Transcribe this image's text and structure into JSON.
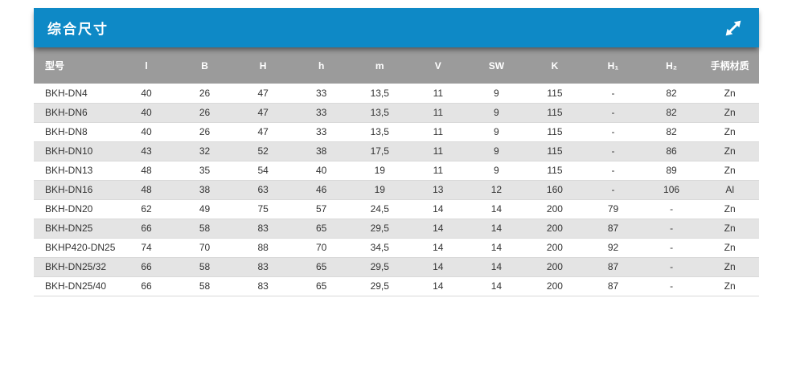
{
  "panel": {
    "title": "综合尺寸",
    "colors": {
      "title_bar": "#0e89c6",
      "header_bg": "#9b9b9b",
      "stripe": "#e4e4e4",
      "text": "#333333"
    },
    "expand_icon": "diagonal-expand-arrow-icon"
  },
  "table": {
    "columns": [
      {
        "key": "model",
        "label": "型号"
      },
      {
        "key": "l",
        "label": "l"
      },
      {
        "key": "B",
        "label": "B"
      },
      {
        "key": "H",
        "label": "H"
      },
      {
        "key": "h",
        "label": "h"
      },
      {
        "key": "m",
        "label": "m"
      },
      {
        "key": "V",
        "label": "V"
      },
      {
        "key": "SW",
        "label": "SW"
      },
      {
        "key": "K",
        "label": "K"
      },
      {
        "key": "H1",
        "label": "H₁"
      },
      {
        "key": "H2",
        "label": "H₂"
      },
      {
        "key": "material",
        "label": "手柄材质"
      }
    ],
    "rows": [
      [
        "BKH-DN4",
        "40",
        "26",
        "47",
        "33",
        "13,5",
        "11",
        "9",
        "115",
        "-",
        "82",
        "Zn"
      ],
      [
        "BKH-DN6",
        "40",
        "26",
        "47",
        "33",
        "13,5",
        "11",
        "9",
        "115",
        "-",
        "82",
        "Zn"
      ],
      [
        "BKH-DN8",
        "40",
        "26",
        "47",
        "33",
        "13,5",
        "11",
        "9",
        "115",
        "-",
        "82",
        "Zn"
      ],
      [
        "BKH-DN10",
        "43",
        "32",
        "52",
        "38",
        "17,5",
        "11",
        "9",
        "115",
        "-",
        "86",
        "Zn"
      ],
      [
        "BKH-DN13",
        "48",
        "35",
        "54",
        "40",
        "19",
        "11",
        "9",
        "115",
        "-",
        "89",
        "Zn"
      ],
      [
        "BKH-DN16",
        "48",
        "38",
        "63",
        "46",
        "19",
        "13",
        "12",
        "160",
        "-",
        "106",
        "Al"
      ],
      [
        "BKH-DN20",
        "62",
        "49",
        "75",
        "57",
        "24,5",
        "14",
        "14",
        "200",
        "79",
        "-",
        "Zn"
      ],
      [
        "BKH-DN25",
        "66",
        "58",
        "83",
        "65",
        "29,5",
        "14",
        "14",
        "200",
        "87",
        "-",
        "Zn"
      ],
      [
        "BKHP420-DN25",
        "74",
        "70",
        "88",
        "70",
        "34,5",
        "14",
        "14",
        "200",
        "92",
        "-",
        "Zn"
      ],
      [
        "BKH-DN25/32",
        "66",
        "58",
        "83",
        "65",
        "29,5",
        "14",
        "14",
        "200",
        "87",
        "-",
        "Zn"
      ],
      [
        "BKH-DN25/40",
        "66",
        "58",
        "83",
        "65",
        "29,5",
        "14",
        "14",
        "200",
        "87",
        "-",
        "Zn"
      ]
    ]
  }
}
